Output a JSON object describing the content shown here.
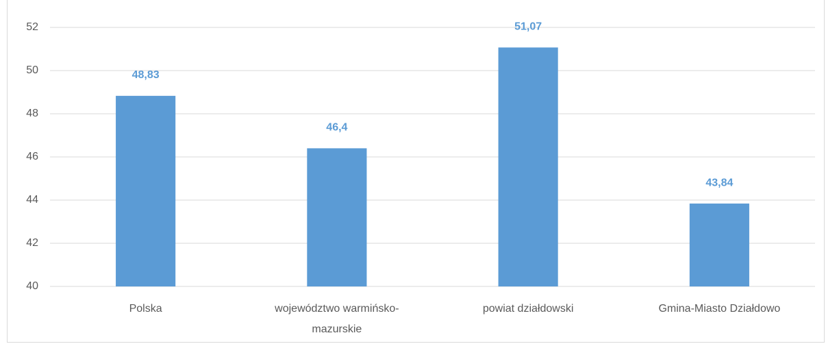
{
  "chart_data": {
    "type": "bar",
    "categories": [
      "Polska",
      "województwo warmińsko-mazurskie",
      "powiat działdowski",
      "Gmina-Miasto Działdowo"
    ],
    "values": [
      48.83,
      46.4,
      51.07,
      43.84
    ],
    "value_labels": [
      "48,83",
      "46,4",
      "51,07",
      "43,84"
    ],
    "color": "#5b9bd5",
    "ylim": [
      40,
      52
    ],
    "yticks": [
      40,
      42,
      44,
      46,
      48,
      50,
      52
    ],
    "grid": true
  }
}
